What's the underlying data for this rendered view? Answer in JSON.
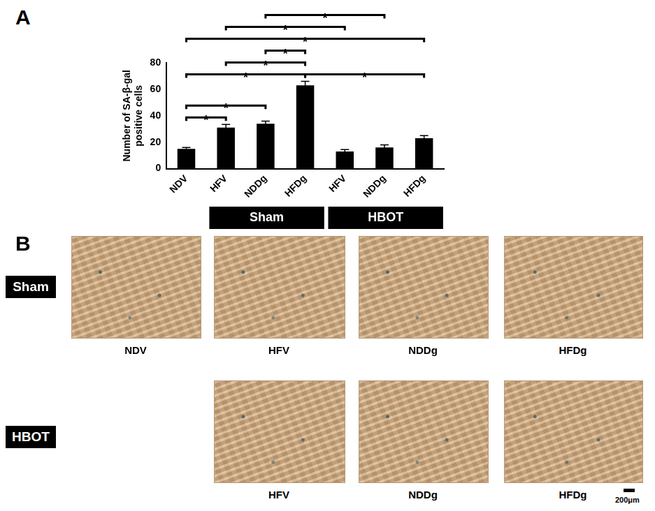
{
  "chart_data": {
    "type": "bar",
    "panel_label": "A",
    "y_label": [
      "Number of SA-β-gal",
      "positive cells"
    ],
    "categories": [
      "NDV",
      "HFV",
      "NDDg",
      "HFDg",
      "HFV",
      "NDDg",
      "HFDg"
    ],
    "values": [
      15,
      31,
      34,
      63,
      13,
      16,
      23
    ],
    "errors": [
      1,
      2.5,
      2,
      3,
      1.5,
      2,
      2
    ],
    "color": "#000000",
    "ylim": [
      0,
      80
    ],
    "yticks": [
      0,
      20,
      40,
      60,
      80
    ],
    "grid": false,
    "groups": [
      {
        "name": "Sham",
        "first": 1,
        "last": 3
      },
      {
        "name": "HBOT",
        "first": 4,
        "last": 6
      }
    ],
    "significance": [
      {
        "pair": [
          0,
          1
        ],
        "label": "*"
      },
      {
        "pair": [
          0,
          2
        ],
        "label": "*"
      },
      {
        "pair": [
          3,
          6
        ],
        "label": "*"
      },
      {
        "pair": [
          0,
          3
        ],
        "label": "*"
      },
      {
        "pair": [
          1,
          3
        ],
        "label": "*"
      },
      {
        "pair": [
          2,
          3
        ],
        "label": "*"
      },
      {
        "pair": [
          0,
          6
        ],
        "label": "*"
      },
      {
        "pair": [
          1,
          4
        ],
        "label": "*"
      },
      {
        "pair": [
          2,
          5
        ],
        "label": "*"
      }
    ]
  },
  "panel_b": {
    "panel_label": "B",
    "rows": [
      {
        "name": "Sham",
        "images": [
          "NDV",
          "HFV",
          "NDDg",
          "HFDg"
        ]
      },
      {
        "name": "HBOT",
        "images": [
          null,
          "HFV",
          "NDDg",
          "HFDg"
        ]
      }
    ],
    "scale_bar": "200μm"
  }
}
